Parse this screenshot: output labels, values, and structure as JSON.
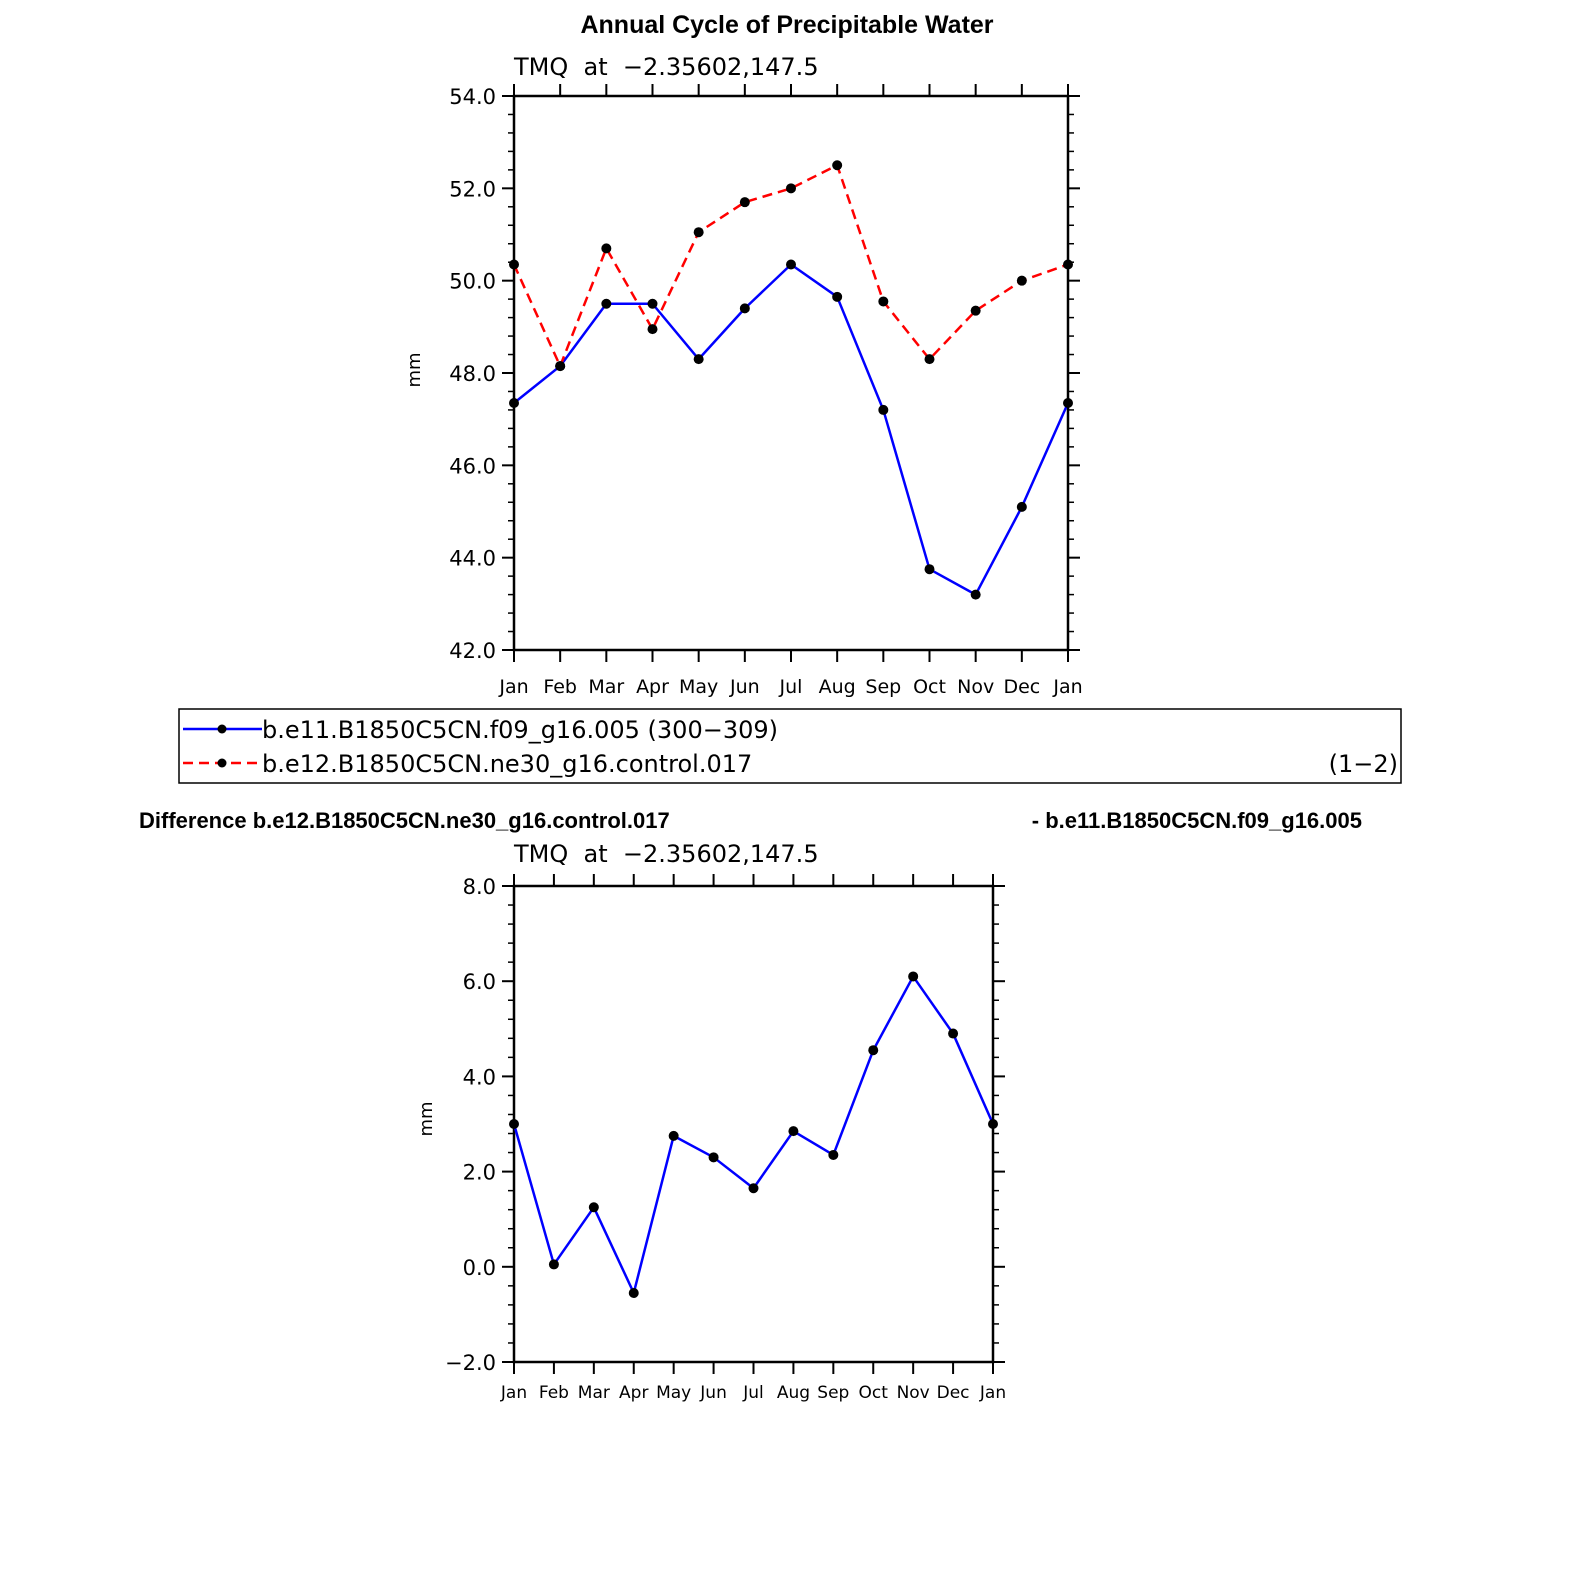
{
  "figure_title": "Annual Cycle of Precipitable Water",
  "legend": {
    "entries": [
      {
        "label": "b.e11.B1850C5CN.f09_g16.005 (300−309)",
        "color": "#0000ff",
        "dash": "solid"
      },
      {
        "label": "b.e12.B1850C5CN.ne30_g16.control.017",
        "color": "#ff0000",
        "dash": "dashed"
      }
    ],
    "right_note": "(1−2)"
  },
  "difference_title": {
    "left": "Difference b.e12.B1850C5CN.ne30_g16.control.017",
    "right": "- b.e11.B1850C5CN.f09_g16.005"
  },
  "chart_data": [
    {
      "type": "line",
      "title": "Annual Cycle of Precipitable Water",
      "subtitle": "TMQ  at  −2.35602,147.5",
      "ylabel": "mm",
      "xlabel": "",
      "categories": [
        "Jan",
        "Feb",
        "Mar",
        "Apr",
        "May",
        "Jun",
        "Jul",
        "Aug",
        "Sep",
        "Oct",
        "Nov",
        "Dec",
        "Jan"
      ],
      "ylim": [
        42.0,
        54.0
      ],
      "yticks": [
        "42.0",
        "44.0",
        "46.0",
        "48.0",
        "50.0",
        "52.0",
        "54.0"
      ],
      "grid": false,
      "series": [
        {
          "name": "b.e11.B1850C5CN.f09_g16.005 (300−309)",
          "color": "#0000ff",
          "dash": "solid",
          "values": [
            47.35,
            48.15,
            49.5,
            49.5,
            48.3,
            49.4,
            50.35,
            49.65,
            47.2,
            43.75,
            43.2,
            45.1,
            47.35
          ]
        },
        {
          "name": "b.e12.B1850C5CN.ne30_g16.control.017",
          "color": "#ff0000",
          "dash": "dashed",
          "values": [
            50.35,
            48.15,
            50.7,
            48.95,
            51.05,
            51.7,
            52.0,
            52.5,
            49.55,
            48.3,
            49.35,
            50.0,
            50.35
          ]
        }
      ]
    },
    {
      "type": "line",
      "title": "Difference b.e12.B1850C5CN.ne30_g16.control.017 - b.e11.B1850C5CN.f09_g16.005",
      "subtitle": "TMQ  at  −2.35602,147.5",
      "ylabel": "mm",
      "xlabel": "",
      "categories": [
        "Jan",
        "Feb",
        "Mar",
        "Apr",
        "May",
        "Jun",
        "Jul",
        "Aug",
        "Sep",
        "Oct",
        "Nov",
        "Dec",
        "Jan"
      ],
      "ylim": [
        -2.0,
        8.0
      ],
      "yticks": [
        "−2.0",
        "0.0",
        "2.0",
        "4.0",
        "6.0",
        "8.0"
      ],
      "grid": false,
      "series": [
        {
          "color": "#0000ff",
          "dash": "solid",
          "values": [
            3.0,
            0.05,
            1.25,
            -0.55,
            2.75,
            2.3,
            1.65,
            2.85,
            2.35,
            4.55,
            6.1,
            4.9,
            3.0
          ]
        }
      ]
    }
  ]
}
